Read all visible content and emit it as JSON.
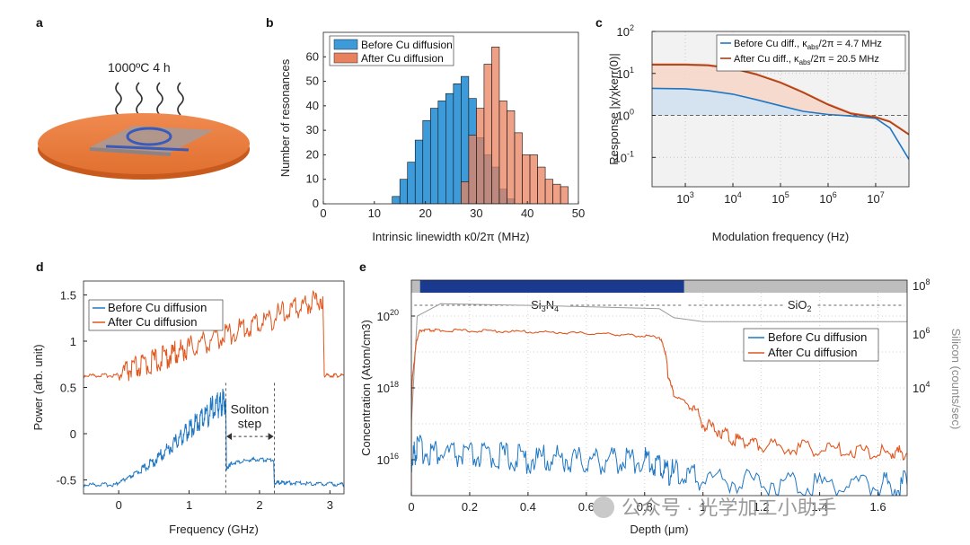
{
  "panels": {
    "a": {
      "letter": "a",
      "annotation": "1000ºC 4 h"
    },
    "b": {
      "letter": "b"
    },
    "c": {
      "letter": "c"
    },
    "d": {
      "letter": "d"
    },
    "e": {
      "letter": "e"
    }
  },
  "watermark": "公众号 · 光学加工小助手",
  "colors": {
    "blue": "#1f77c4",
    "orange": "#e0561f",
    "blue_fill": "#3d9bd9",
    "orange_fill": "#e8825e",
    "navy": "#1a3a8f",
    "gray_bar": "#bdbdbd"
  },
  "chart_data": [
    {
      "id": "b",
      "type": "bar",
      "xlabel": "Intrinsic linewidth κ0/2π (MHz)",
      "ylabel": "Number of resonances",
      "xlim": [
        0,
        50
      ],
      "ylim": [
        0,
        70
      ],
      "xticks": [
        "0",
        "10",
        "20",
        "30",
        "40",
        "50"
      ],
      "yticks": [
        "0",
        "10",
        "20",
        "30",
        "40",
        "50",
        "60"
      ],
      "bin_width": 1.5,
      "series": [
        {
          "name": "Before Cu diffusion",
          "bin_starts": [
            13.5,
            15,
            16.5,
            18,
            19.5,
            21,
            22.5,
            24,
            25.5,
            27,
            28.5,
            30,
            31.5,
            33,
            34.5,
            36
          ],
          "values": [
            3,
            10,
            17,
            26,
            34,
            39,
            42,
            45,
            49,
            52,
            43,
            27,
            20,
            15,
            6,
            2
          ]
        },
        {
          "name": "After Cu diffusion",
          "bin_starts": [
            27,
            28.5,
            30,
            31.5,
            33,
            34.5,
            36,
            37.5,
            39,
            40.5,
            42,
            43.5,
            45,
            46.5
          ],
          "values": [
            9,
            28,
            39,
            57,
            64,
            42,
            38,
            29,
            20,
            20,
            15,
            10,
            8,
            7
          ]
        }
      ]
    },
    {
      "id": "c",
      "type": "line",
      "xlabel": "Modulation frequency (Hz)",
      "ylabel": "Response |χ/χkerr(0)|",
      "xscale": "log",
      "yscale": "log",
      "xlim": [
        200,
        50000000
      ],
      "ylim": [
        0.02,
        100
      ],
      "xticks": [
        "10",
        "10",
        "10",
        "10",
        "10"
      ],
      "xtick_exp": [
        "3",
        "4",
        "5",
        "6",
        "7"
      ],
      "yticks": [
        "10",
        "10",
        "10",
        "10"
      ],
      "ytick_exp": [
        "-1",
        "0",
        "1",
        "2"
      ],
      "series": [
        {
          "name": "Before Cu diff., κabs/2π = 4.7 MHz",
          "legend_main": "Before Cu diff., κ",
          "legend_sub": "abs",
          "legend_tail": "/2π = 4.7 MHz",
          "x": [
            200,
            1000,
            3000,
            10000,
            30000,
            100000,
            300000,
            1000000,
            3000000,
            10000000,
            20000000,
            50000000
          ],
          "y": [
            4.4,
            4.3,
            3.9,
            3.2,
            2.4,
            1.7,
            1.25,
            1.05,
            0.97,
            0.85,
            0.5,
            0.09
          ]
        },
        {
          "name": "After Cu diff., κabs/2π = 20.5 MHz",
          "legend_main": "After Cu diff., κ",
          "legend_sub": "abs",
          "legend_tail": "/2π = 20.5 MHz",
          "x": [
            200,
            1000,
            3000,
            10000,
            30000,
            100000,
            300000,
            1000000,
            3000000,
            10000000,
            20000000,
            50000000
          ],
          "y": [
            16,
            16,
            15.5,
            13,
            9.5,
            6,
            3.5,
            1.8,
            1.1,
            0.9,
            0.7,
            0.35
          ]
        }
      ]
    },
    {
      "id": "d",
      "type": "line",
      "xlabel": "Frequency (GHz)",
      "ylabel": "Power (arb. unit)",
      "xlim": [
        -0.5,
        3.2
      ],
      "ylim": [
        -0.65,
        1.65
      ],
      "xticks": [
        "0",
        "1",
        "2",
        "3"
      ],
      "yticks": [
        "-0.5",
        "0",
        "0.5",
        "1",
        "1.5"
      ],
      "annotation_line1": "Soliton",
      "annotation_line2": "step",
      "series": [
        {
          "name": "Before Cu diffusion",
          "x": [
            -0.5,
            -0.05,
            0.2,
            0.5,
            0.8,
            1.0,
            1.2,
            1.4,
            1.52,
            1.53,
            1.6,
            1.9,
            2.2,
            2.21,
            2.4,
            2.8,
            3.2
          ],
          "y": [
            -0.55,
            -0.55,
            -0.45,
            -0.3,
            -0.1,
            0.05,
            0.18,
            0.3,
            0.38,
            -0.38,
            -0.32,
            -0.28,
            -0.28,
            -0.53,
            -0.53,
            -0.54,
            -0.55
          ]
        },
        {
          "name": "After Cu diffusion",
          "x": [
            -0.5,
            -0.05,
            0.3,
            0.7,
            1.0,
            1.5,
            2.0,
            2.5,
            2.9,
            2.92,
            3.2
          ],
          "y": [
            0.63,
            0.63,
            0.72,
            0.84,
            0.93,
            1.07,
            1.2,
            1.35,
            1.48,
            0.63,
            0.63
          ]
        }
      ]
    },
    {
      "id": "e",
      "type": "line",
      "xlabel": "Depth (μm)",
      "ylabel": "Concentration (Atom/cm3)",
      "ylabel2": "Silicon (counts/sec)",
      "xlim": [
        0,
        1.7
      ],
      "yscale": "log",
      "ylim": [
        1000000000000000.0,
        1e+21
      ],
      "y2lim": [
        1,
        100000000.0
      ],
      "xticks": [
        "0",
        "0.2",
        "0.4",
        "0.6",
        "0.8",
        "1",
        "1.2",
        "1.4",
        "1.6"
      ],
      "yticks": [
        "10",
        "10",
        "10"
      ],
      "ytick_exp": [
        "16",
        "18",
        "20"
      ],
      "y2ticks": [
        "10",
        "10",
        "10"
      ],
      "y2tick_exp": [
        "4",
        "6",
        "8"
      ],
      "region_labels": {
        "si3n4_main": "Si",
        "si3n4_sub1": "3",
        "si3n4_mid": "N",
        "si3n4_sub2": "4",
        "sio2": "SiO",
        "sio2_sub": "2"
      },
      "series": [
        {
          "name": "Before Cu diffusion",
          "x": [
            0,
            0.02,
            0.1,
            0.2,
            0.3,
            0.4,
            0.5,
            0.6,
            0.7,
            0.8,
            0.86,
            0.9,
            1.0,
            1.2,
            1.4,
            1.6,
            1.7
          ],
          "y": [
            1e+16,
            2e+16,
            1.5e+16,
            1.2e+16,
            1.3e+16,
            1e+16,
            1.1e+16,
            9000000000000000.0,
            1e+16,
            1e+16,
            6000000000000000.0,
            4000000000000000.0,
            3000000000000000.0,
            2500000000000000.0,
            2200000000000000.0,
            2000000000000000.0,
            2000000000000000.0
          ]
        },
        {
          "name": "After Cu diffusion",
          "x": [
            0,
            0.01,
            0.03,
            0.1,
            0.3,
            0.5,
            0.7,
            0.85,
            0.88,
            0.9,
            1.0,
            1.1,
            1.2,
            1.4,
            1.6,
            1.7
          ],
          "y": [
            1000000000000000.0,
            5e+18,
            4e+19,
            4e+19,
            3.8e+19,
            3.5e+19,
            3.1e+19,
            2.6e+19,
            2e+18,
            6e+17,
            1e+17,
            4e+16,
            2.5e+16,
            2e+16,
            1.6e+16,
            1.5e+16
          ]
        },
        {
          "name": "Silicon",
          "x": [
            0,
            0.02,
            0.1,
            0.5,
            0.85,
            0.9,
            1.0,
            1.7
          ],
          "y": [
            1e+17,
            1e+20,
            2.2e+20,
            1.9e+20,
            1.6e+20,
            9e+19,
            7e+19,
            7e+19
          ]
        }
      ]
    }
  ]
}
